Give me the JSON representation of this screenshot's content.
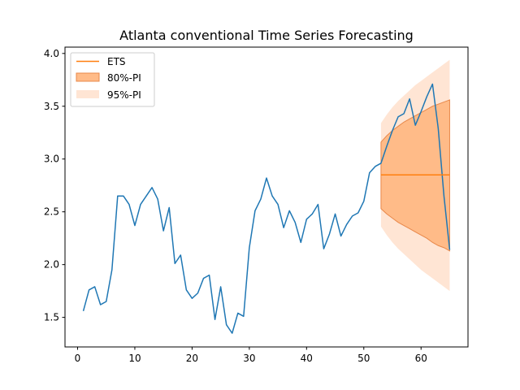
{
  "chart_data": {
    "type": "line",
    "title": "Atlanta conventional Time Series Forecasting",
    "xlabel": "",
    "ylabel": "",
    "xlim": [
      -2.2,
      68.2
    ],
    "ylim": [
      1.22,
      4.06
    ],
    "x_ticks": [
      0,
      10,
      20,
      30,
      40,
      50,
      60
    ],
    "y_ticks": [
      1.5,
      2.0,
      2.5,
      3.0,
      3.5,
      4.0
    ],
    "x_tick_labels": [
      "0",
      "10",
      "20",
      "30",
      "40",
      "50",
      "60"
    ],
    "y_tick_labels": [
      "1.5",
      "2.0",
      "2.5",
      "3.0",
      "3.5",
      "4.0"
    ],
    "grid": false,
    "legend_position": "top-left",
    "colors": {
      "series": "#1f77b4",
      "forecast": "#ff7f0e",
      "pi80_fill": "#ffbb88",
      "pi80_edge": "#e8884a",
      "pi95_fill": "#ffe5d4"
    },
    "series": [
      {
        "x": [
          1,
          2,
          3,
          4,
          5,
          6,
          7,
          8,
          9,
          10,
          11,
          12,
          13,
          14,
          15,
          16,
          17,
          18,
          19,
          20,
          21,
          22,
          23,
          24,
          25,
          26,
          27,
          28,
          29,
          30,
          31,
          32,
          33,
          34,
          35,
          36,
          37,
          38,
          39,
          40,
          41,
          42,
          43,
          44,
          45,
          46,
          47,
          48,
          49,
          50,
          51,
          52,
          53,
          54,
          55,
          56,
          57,
          58,
          59,
          60,
          61,
          62,
          63,
          64,
          65
        ],
        "values": [
          1.56,
          1.76,
          1.79,
          1.62,
          1.65,
          1.95,
          2.65,
          2.65,
          2.57,
          2.37,
          2.57,
          2.65,
          2.73,
          2.62,
          2.32,
          2.54,
          2.01,
          2.09,
          1.76,
          1.68,
          1.73,
          1.87,
          1.9,
          1.48,
          1.79,
          1.43,
          1.35,
          1.54,
          1.51,
          2.16,
          2.51,
          2.62,
          2.82,
          2.65,
          2.57,
          2.35,
          2.51,
          2.4,
          2.21,
          2.43,
          2.48,
          2.57,
          2.15,
          2.29,
          2.48,
          2.27,
          2.38,
          2.46,
          2.49,
          2.6,
          2.87,
          2.93,
          2.96,
          3.12,
          3.27,
          3.4,
          3.43,
          3.57,
          3.32,
          3.45,
          3.59,
          3.71,
          3.29,
          2.65,
          2.14
        ]
      }
    ],
    "forecast": {
      "name": "ETS",
      "x": [
        53,
        65
      ],
      "values": [
        2.85,
        2.85
      ]
    },
    "pi80": {
      "name": "80%-PI",
      "x": [
        53,
        54,
        55,
        56,
        57,
        58,
        59,
        60,
        61,
        62,
        63,
        64,
        65
      ],
      "upper": [
        3.16,
        3.22,
        3.27,
        3.31,
        3.35,
        3.38,
        3.41,
        3.44,
        3.47,
        3.5,
        3.52,
        3.54,
        3.56
      ],
      "lower": [
        2.53,
        2.48,
        2.44,
        2.4,
        2.37,
        2.34,
        2.31,
        2.28,
        2.25,
        2.21,
        2.18,
        2.16,
        2.13
      ]
    },
    "pi95": {
      "name": "95%-PI",
      "x": [
        53,
        54,
        55,
        56,
        57,
        58,
        59,
        60,
        61,
        62,
        63,
        64,
        65
      ],
      "upper": [
        3.34,
        3.42,
        3.49,
        3.55,
        3.6,
        3.65,
        3.7,
        3.74,
        3.78,
        3.82,
        3.86,
        3.9,
        3.94
      ],
      "lower": [
        2.36,
        2.28,
        2.21,
        2.15,
        2.1,
        2.05,
        2.0,
        1.95,
        1.91,
        1.87,
        1.83,
        1.79,
        1.75
      ]
    }
  }
}
